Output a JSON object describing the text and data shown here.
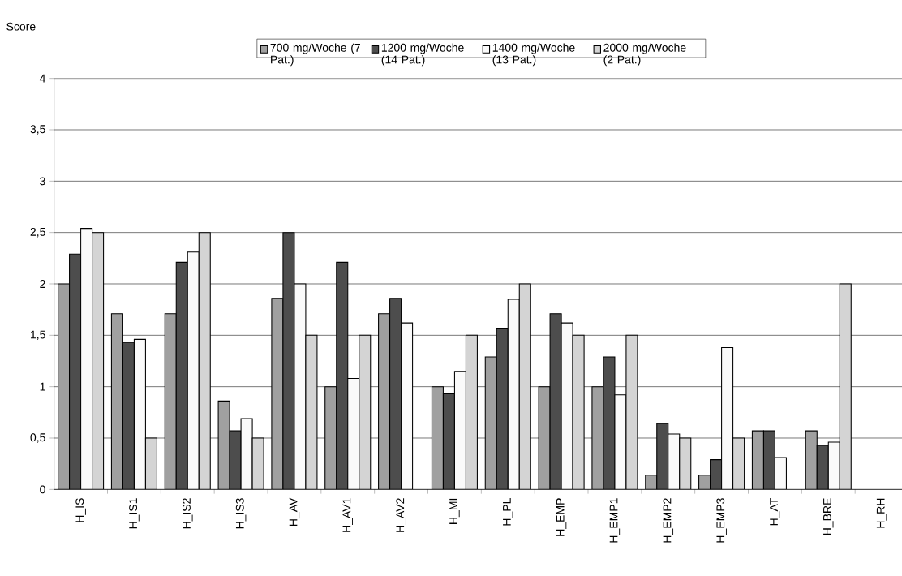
{
  "chart_data": {
    "type": "bar",
    "ylabel": "Score",
    "categories": [
      "H_IS",
      "H_IS1",
      "H_IS2",
      "H_IS3",
      "H_AV",
      "H_AV1",
      "H_AV2",
      "H_MI",
      "H_PL",
      "H_EMP",
      "H_EMP1",
      "H_EMP2",
      "H_EMP3",
      "H_AT",
      "H_BRE",
      "H_RH"
    ],
    "series": [
      {
        "name": "700 mg/Woche (7 Pat.)",
        "color": "#a0a0a0",
        "values": [
          2,
          1.71,
          1.71,
          0.86,
          1.86,
          1,
          1.71,
          1,
          1.29,
          1,
          1,
          0.14,
          0.14,
          0.57,
          0.57,
          null
        ]
      },
      {
        "name": "1200 mg/Woche (14 Pat.)",
        "color": "#4d4d4d",
        "values": [
          2.29,
          1.43,
          2.21,
          0.57,
          2.5,
          2.21,
          1.86,
          0.93,
          1.57,
          1.71,
          1.29,
          0.64,
          0.29,
          0.57,
          0.43,
          null
        ]
      },
      {
        "name": "1400 mg/Woche (13 Pat.)",
        "color": "#fafafa",
        "values": [
          2.54,
          1.46,
          2.31,
          0.69,
          2,
          1.08,
          1.62,
          1.15,
          1.85,
          1.62,
          0.92,
          0.54,
          1.38,
          0.31,
          0.46,
          null
        ]
      },
      {
        "name": "2000 mg/Woche (2 Pat.)",
        "color": "#d4d4d4",
        "values": [
          2.5,
          0.5,
          2.5,
          0.5,
          1.5,
          1.5,
          null,
          1.5,
          2,
          1.5,
          1.5,
          0.5,
          0.5,
          null,
          2,
          null
        ]
      }
    ],
    "ylim": [
      0,
      4
    ],
    "yticks": [
      0,
      {
        "value": 0.5,
        "label": "0,5"
      },
      1,
      {
        "value": 1.5,
        "label": "1,5"
      },
      2,
      {
        "value": 2.5,
        "label": "2,5"
      },
      3,
      {
        "value": 3.5,
        "label": "3,5"
      },
      4
    ],
    "grid": "y",
    "legend": "top"
  }
}
